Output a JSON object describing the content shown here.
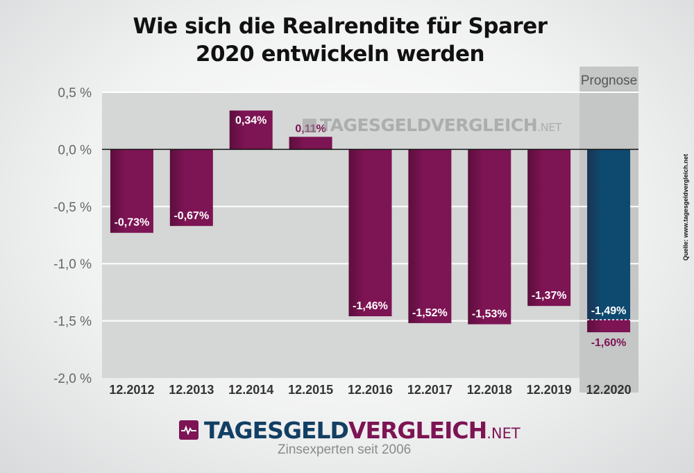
{
  "title_line1": "Wie sich die Realrendite für Sparer",
  "title_line2": "2020 entwickeln werden",
  "source": "Quelle: www.tagesgeldvergleich.net",
  "watermark": {
    "main": "TAGESGELDVERGLEICH",
    "suffix": ".NET"
  },
  "logo": {
    "part1": "TAGESGELD",
    "part2": "VERGLEICH",
    "part3": ".NET"
  },
  "tagline": "Zinsexperten seit 2006",
  "prognose_label": "Prognose",
  "colors": {
    "bar": "#7d1454",
    "bar_dark": "#5c0e3d",
    "forecast": "#0e4a70",
    "forecast_dark": "#1a3556",
    "plot_bg": "#d5d6d6",
    "prognose_bg": "#c5c6c6",
    "label_dark": "#7d1454",
    "label_light": "#ffffff"
  },
  "chart_data": {
    "type": "bar",
    "title": "Wie sich die Realrendite für Sparer 2020 entwickeln werden",
    "categories": [
      "12.2012",
      "12.2013",
      "12.2014",
      "12.2015",
      "12.2016",
      "12.2017",
      "12.2018",
      "12.2019",
      "12.2020"
    ],
    "values": [
      -0.73,
      -0.67,
      0.34,
      0.11,
      -1.46,
      -1.52,
      -1.53,
      -1.37,
      -1.6
    ],
    "labels": [
      "-0,73%",
      "-0,67%",
      "0,34%",
      "0,11%",
      "-1,46%",
      "-1,52%",
      "-1,53%",
      "-1,37%",
      "-1,60%"
    ],
    "forecast_partial": {
      "category": "12.2020",
      "value": -1.49,
      "label": "-1,49%"
    },
    "ylim": [
      -2.0,
      0.5
    ],
    "yticks": [
      0.5,
      0.0,
      -0.5,
      -1.0,
      -1.5,
      -2.0
    ],
    "ytick_labels": [
      "0,5 %",
      "0,0 %",
      "-0,5 %",
      "-1,0 %",
      "-1,5 %",
      "-2,0 %"
    ],
    "grid": true,
    "legend": "none"
  }
}
